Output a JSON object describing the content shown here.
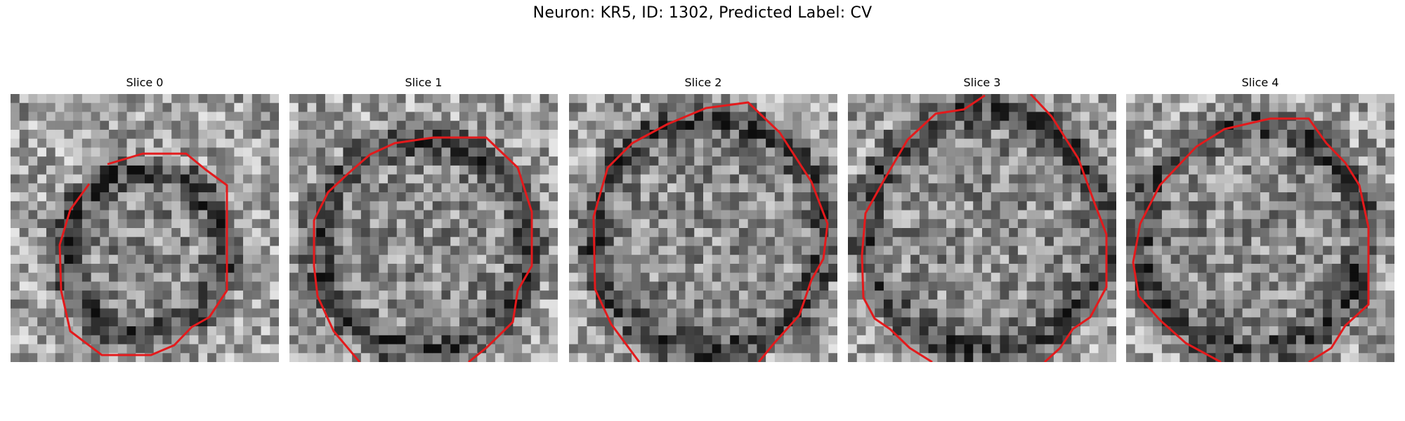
{
  "figure": {
    "title": "Neuron: KR5, ID: 1302, Predicted Label: CV"
  },
  "panels": [
    {
      "title": "Slice 0"
    },
    {
      "title": "Slice 1"
    },
    {
      "title": "Slice 2"
    },
    {
      "title": "Slice 3"
    },
    {
      "title": "Slice 4"
    }
  ],
  "colors": {
    "contour": "#e31a1c",
    "background": "#ffffff"
  }
}
